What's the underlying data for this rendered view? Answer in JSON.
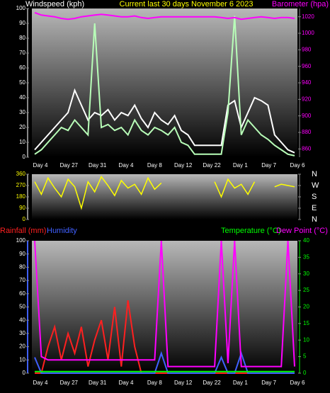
{
  "chart_data": [
    {
      "type": "line",
      "y_label": "Windspeed (kph)",
      "title": "Current last 30 days November 6 2023",
      "y2_label": "Barometer (hpa)",
      "x_labels": [
        "Day 4",
        "Day 27",
        "Day 31",
        "Day 4",
        "Day 8",
        "Day 12",
        "Day 22",
        "Day 1",
        "Day 7",
        "Day 6"
      ],
      "ylim": [
        0,
        100
      ],
      "yticks": [
        0,
        10,
        20,
        30,
        40,
        50,
        60,
        70,
        80,
        90,
        100
      ],
      "y2lim": [
        850,
        1030
      ],
      "y2ticks": [
        860,
        880,
        900,
        920,
        940,
        960,
        980,
        1000,
        1020
      ],
      "series": [
        {
          "color": "#ffffff",
          "values": [
            5,
            10,
            15,
            20,
            25,
            30,
            45,
            35,
            25,
            30,
            28,
            32,
            25,
            30,
            28,
            35,
            26,
            20,
            30,
            25,
            22,
            28,
            18,
            15,
            8,
            8,
            8,
            8,
            8,
            35,
            38,
            20,
            30,
            40,
            38,
            35,
            15,
            10,
            5,
            3
          ]
        },
        {
          "color": "#b8ffb8",
          "values": [
            2,
            5,
            10,
            15,
            20,
            18,
            25,
            20,
            15,
            90,
            20,
            22,
            18,
            20,
            15,
            25,
            18,
            15,
            20,
            18,
            15,
            20,
            10,
            8,
            2,
            2,
            2,
            2,
            2,
            30,
            95,
            15,
            25,
            20,
            15,
            12,
            8,
            5,
            2,
            1
          ]
        },
        {
          "color": "#ff00ff",
          "axis": "y2",
          "values": [
            1025,
            1022,
            1021,
            1020,
            1018,
            1017,
            1018,
            1020,
            1021,
            1022,
            1023,
            1022,
            1021,
            1020,
            1020,
            1021,
            1019,
            1018,
            1019,
            1020,
            1020,
            1020,
            1020,
            1020,
            1020,
            1020,
            1020,
            1020,
            1019,
            1018,
            1019,
            1017,
            1018,
            1019,
            1020,
            1019,
            1018,
            1019,
            1019,
            1018
          ]
        }
      ]
    },
    {
      "type": "line",
      "ylim": [
        0,
        360
      ],
      "yticks": [
        0,
        90,
        180,
        270,
        360
      ],
      "y2lim": [
        0,
        360
      ],
      "y2ticks": [
        {
          "value": 360,
          "label": "N"
        },
        {
          "value": 270,
          "label": "W"
        },
        {
          "value": 180,
          "label": "S"
        },
        {
          "value": 90,
          "label": "E"
        },
        {
          "value": 0,
          "label": "N"
        }
      ],
      "series": [
        {
          "color": "#ffff00",
          "values": [
            300,
            200,
            330,
            250,
            180,
            320,
            260,
            90,
            300,
            220,
            340,
            270,
            190,
            310,
            250,
            280,
            200,
            330,
            240,
            290,
            null,
            null,
            null,
            null,
            null,
            null,
            null,
            300,
            180,
            320,
            250,
            280,
            200,
            300,
            null,
            null,
            260,
            280,
            270,
            260
          ]
        }
      ]
    },
    {
      "type": "line",
      "x_labels": [
        "Day 4",
        "Day 27",
        "Day 31",
        "Day 4",
        "Day 8",
        "Day 12",
        "Day 22",
        "Day 1",
        "Day 7",
        "Day 6"
      ],
      "ylim": [
        0,
        100
      ],
      "yticks": [
        0,
        10,
        20,
        30,
        40,
        50,
        60,
        70,
        80,
        90,
        100
      ],
      "y2lim": [
        0,
        40
      ],
      "y2ticks": [
        0,
        5,
        10,
        15,
        20,
        25,
        30,
        35,
        40
      ],
      "series": [
        {
          "name": "Rainfall (mm)",
          "color": "#ff2020",
          "values": [
            0,
            0,
            20,
            35,
            10,
            30,
            15,
            35,
            5,
            25,
            40,
            10,
            50,
            5,
            55,
            20,
            0,
            0,
            0,
            0,
            0,
            0,
            0,
            0,
            0,
            0,
            0,
            0,
            0,
            0,
            0,
            0,
            0,
            0,
            0,
            0,
            0,
            0,
            0,
            0
          ]
        },
        {
          "name": "Humidity",
          "color": "#4060ff",
          "values": [
            12,
            0,
            0,
            0,
            0,
            0,
            0,
            0,
            0,
            0,
            0,
            0,
            0,
            0,
            0,
            0,
            0,
            0,
            0,
            15,
            0,
            0,
            0,
            0,
            0,
            0,
            0,
            0,
            12,
            0,
            0,
            15,
            0,
            0,
            0,
            0,
            0,
            0,
            0,
            0
          ]
        },
        {
          "name": "Temperature (°C)",
          "color": "#00ff00",
          "axis": "y2",
          "values": [
            0.5,
            0.5,
            0.5,
            0.5,
            0.5,
            0.5,
            0.5,
            0.5,
            0.5,
            0.5,
            0.5,
            0.5,
            0.5,
            0.5,
            0.5,
            0.5,
            0.5,
            0.5,
            0.5,
            0.5,
            0.5,
            0.5,
            0.5,
            0.5,
            0.5,
            0.5,
            0.5,
            0.5,
            0.5,
            0.5,
            0.5,
            0.5,
            0.5,
            0.5,
            0.5,
            0.5,
            0.5,
            0.5,
            0.5,
            0.5
          ]
        },
        {
          "name": "Dew Point (°C)",
          "color": "#ff00ff",
          "axis": "y2",
          "values": [
            40,
            5,
            4,
            4,
            4,
            4,
            4,
            4,
            4,
            4,
            4,
            4,
            4,
            4,
            4,
            4,
            4,
            4,
            4,
            40,
            2,
            2,
            2,
            2,
            2,
            2,
            2,
            2,
            40,
            3,
            40,
            2,
            2,
            2,
            2,
            2,
            2,
            2,
            40,
            2
          ]
        }
      ]
    }
  ]
}
